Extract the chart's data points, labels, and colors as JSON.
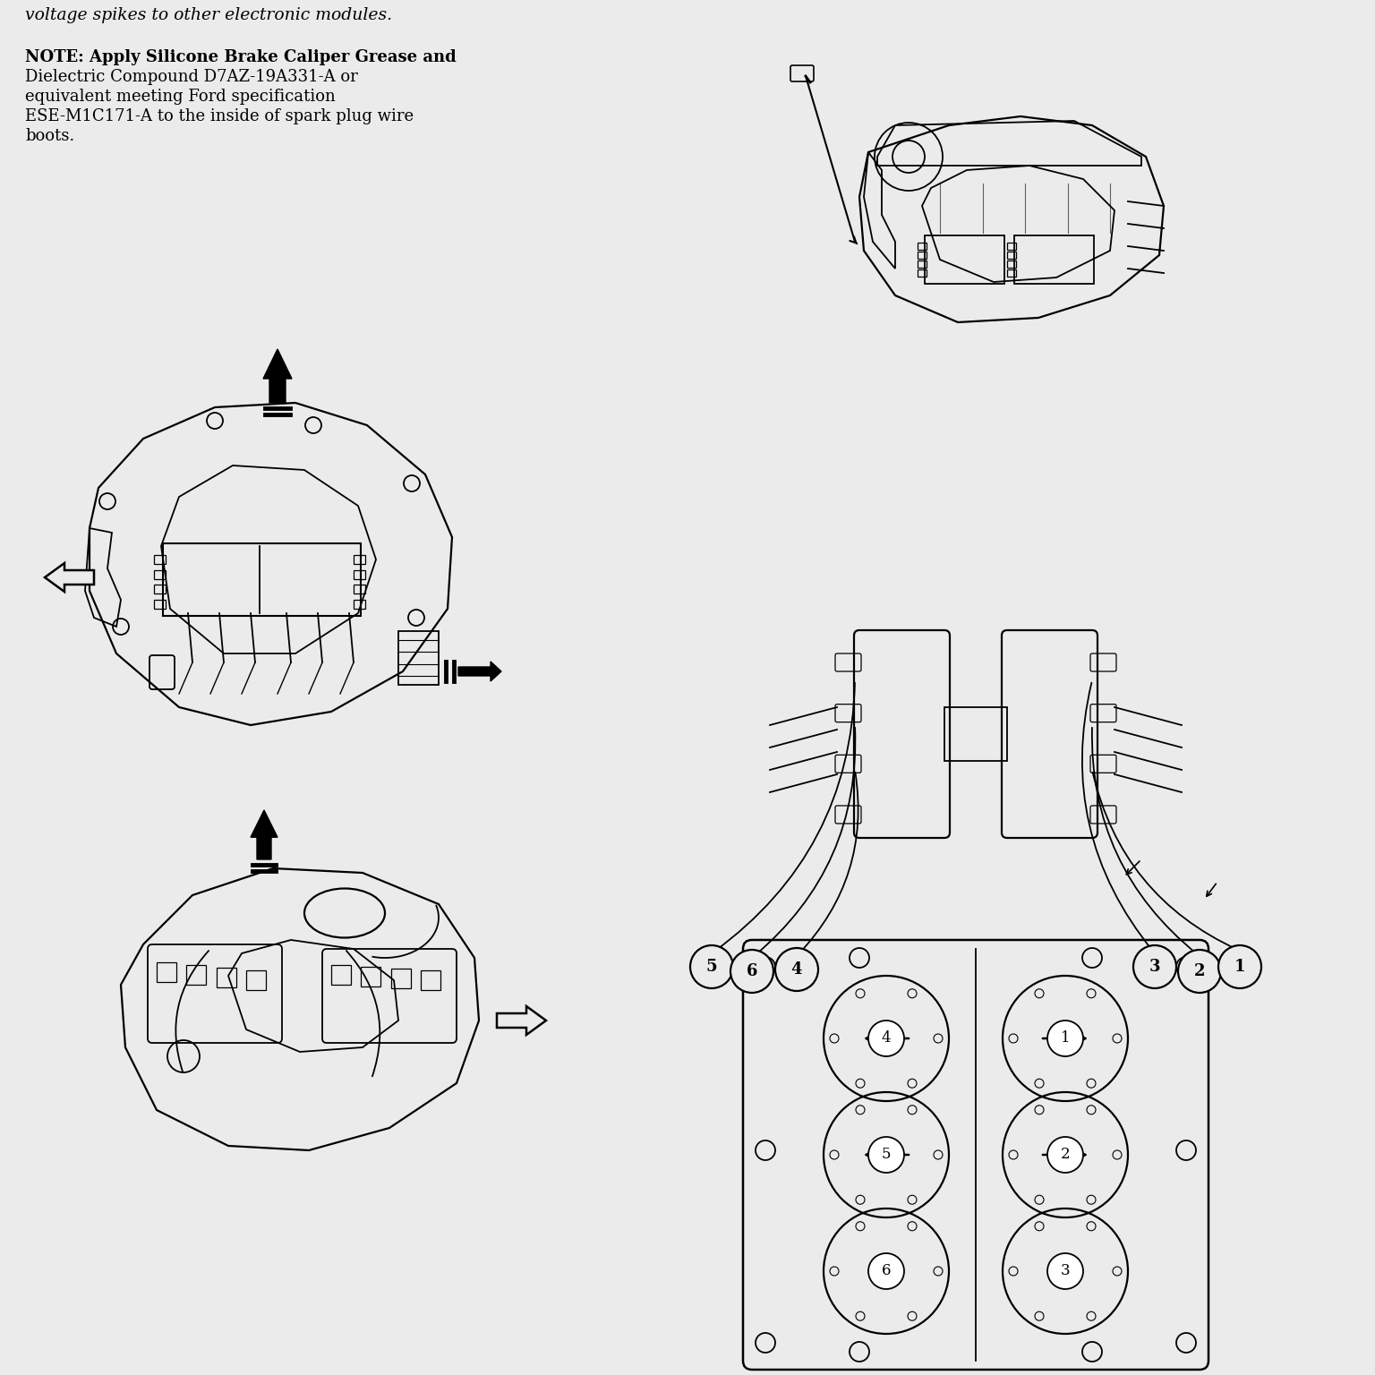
{
  "background_color": "#ebebeb",
  "note_text_line1": "NOTE: Apply Silicone Brake Caliper Grease and",
  "note_text_line2": "Dielectric Compound D7AZ-19A331-A or",
  "note_text_line3": "equivalent meeting Ford specification",
  "note_text_line4": "ESE-M1C171-A to the inside of spark plug wire",
  "note_text_line5": "boots.",
  "top_partial_text": "voltage spikes to other electronic modules.",
  "cyl_numbers_left": [
    "5",
    "6",
    "4"
  ],
  "cyl_numbers_right": [
    "3",
    "2",
    "1"
  ],
  "cyl_diagram_labels": [
    [
      "4",
      "1"
    ],
    [
      "5",
      "2"
    ],
    [
      "6",
      "3"
    ]
  ],
  "bg": "#ebebeb"
}
